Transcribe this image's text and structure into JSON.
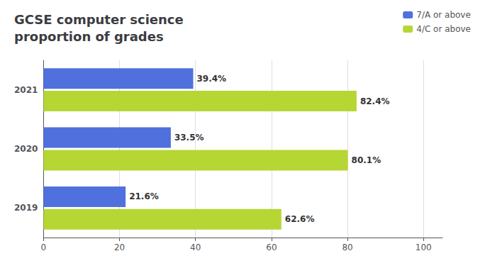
{
  "chart_data": {
    "type": "bar",
    "orientation": "horizontal",
    "title": "GCSE computer science\nproportion of grades",
    "categories": [
      "2021",
      "2020",
      "2019"
    ],
    "series": [
      {
        "name": "7/A or above",
        "values": [
          39.4,
          33.5,
          21.6
        ],
        "value_labels": [
          "39.4%",
          "33.5%",
          "21.6%"
        ]
      },
      {
        "name": "4/C or above",
        "values": [
          82.4,
          80.1,
          62.6
        ],
        "value_labels": [
          "82.4%",
          "80.1%",
          "62.6%"
        ]
      }
    ],
    "xlim": [
      0,
      105
    ],
    "xticks": [
      0,
      20,
      40,
      60,
      80,
      100
    ],
    "grid": true,
    "legend": "upper right",
    "data_labels": true
  }
}
